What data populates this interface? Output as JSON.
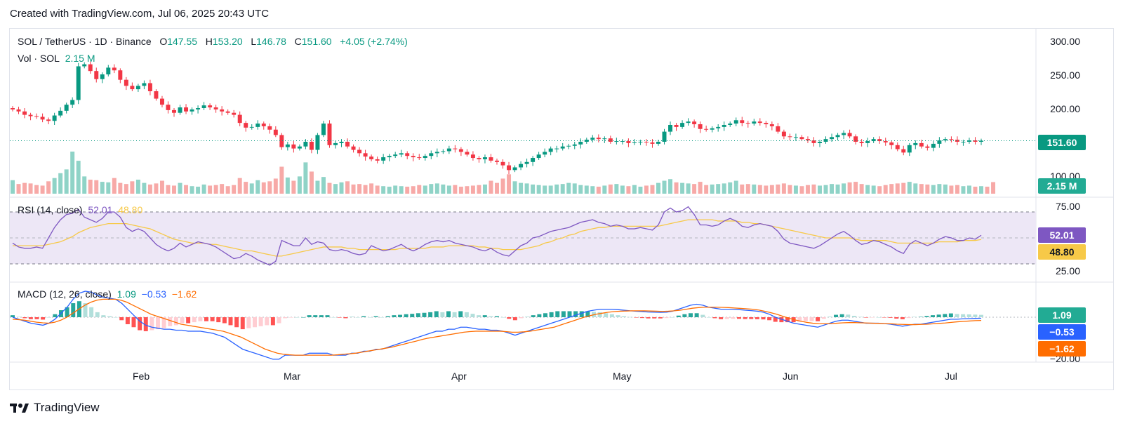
{
  "header": {
    "created": "Created with TradingView.com, Jul 06, 2025 20:43 UTC"
  },
  "price_legend": {
    "symbol": "SOL / TetherUS · 1D · Binance",
    "o_label": "O",
    "o": "147.55",
    "h_label": "H",
    "h": "153.20",
    "l_label": "L",
    "l": "146.78",
    "c_label": "C",
    "c": "151.60",
    "change": "+4.05 (+2.74%)"
  },
  "vol_legend": {
    "label": "Vol · SOL",
    "value": "2.15 M"
  },
  "rsi_legend": {
    "label": "RSI (14, close)",
    "rsi": "52.01",
    "ma": "48.80"
  },
  "macd_legend": {
    "label": "MACD (12, 26, close)",
    "hist": "1.09",
    "macd": "−0.53",
    "signal": "−1.62"
  },
  "price_axis": [
    "300.00",
    "250.00",
    "200.00",
    "100.00"
  ],
  "rsi_axis": [
    "75.00",
    "25.00"
  ],
  "macd_axis": [
    "−20.00"
  ],
  "badges": {
    "price": "151.60",
    "volume": "2.15 M",
    "rsi": "52.01",
    "rsi_ma": "48.80",
    "macd_hist": "1.09",
    "macd": "−0.53",
    "signal": "−1.62"
  },
  "x_labels": [
    "Feb",
    "Mar",
    "Apr",
    "May",
    "Jun",
    "Jul"
  ],
  "footer": {
    "brand": "TradingView"
  },
  "colors": {
    "up": "#089981",
    "down": "#f23645",
    "rsi": "#7e57c2",
    "rsi_ma": "#f7c948",
    "macd": "#2962ff",
    "signal": "#ff6d00",
    "rsi_band": "#ede7f6"
  },
  "chart_data": {
    "type": "candlestick",
    "symbol": "SOL / TetherUS",
    "interval": "1D",
    "exchange": "Binance",
    "x_labels": [
      "Feb",
      "Mar",
      "Apr",
      "May",
      "Jun",
      "Jul"
    ],
    "price_ylim": [
      100,
      300
    ],
    "last_close": 151.6,
    "close_series": [
      198,
      195,
      190,
      188,
      187,
      183,
      181,
      189,
      196,
      205,
      212,
      262,
      265,
      255,
      243,
      250,
      260,
      256,
      242,
      233,
      228,
      233,
      237,
      225,
      214,
      205,
      197,
      193,
      201,
      195,
      198,
      200,
      204,
      201,
      198,
      195,
      193,
      190,
      178,
      171,
      172,
      177,
      173,
      168,
      160,
      142,
      146,
      140,
      143,
      150,
      138,
      160,
      177,
      145,
      148,
      150,
      143,
      138,
      133,
      128,
      124,
      122,
      127,
      129,
      131,
      133,
      129,
      127,
      126,
      129,
      133,
      135,
      136,
      140,
      139,
      135,
      131,
      126,
      124,
      127,
      122,
      120,
      115,
      108,
      112,
      117,
      120,
      126,
      131,
      135,
      140,
      140,
      143,
      144,
      146,
      150,
      153,
      156,
      154,
      155,
      150,
      151,
      151,
      148,
      149,
      150,
      149,
      147,
      150,
      165,
      175,
      172,
      178,
      180,
      176,
      169,
      168,
      170,
      172,
      175,
      177,
      182,
      178,
      177,
      180,
      178,
      176,
      173,
      165,
      158,
      157,
      157,
      154,
      152,
      148,
      150,
      154,
      157,
      160,
      163,
      158,
      150,
      148,
      151,
      154,
      151,
      149,
      145,
      139,
      134,
      145,
      148,
      143,
      141,
      147,
      152,
      154,
      153,
      150,
      150,
      152,
      150,
      151.6
    ],
    "volume_m": [
      2.5,
      1.8,
      2.0,
      1.9,
      1.6,
      1.5,
      2.3,
      2.9,
      3.8,
      4.5,
      7.8,
      6.1,
      3.2,
      2.6,
      2.5,
      2.2,
      2.1,
      2.9,
      2.0,
      1.8,
      2.3,
      2.6,
      2.0,
      1.7,
      1.9,
      2.4,
      1.6,
      1.5,
      2.0,
      1.6,
      1.4,
      1.3,
      1.7,
      1.5,
      1.6,
      1.8,
      1.4,
      1.6,
      2.9,
      2.2,
      1.9,
      2.5,
      2.1,
      2.3,
      2.8,
      5.0,
      3.0,
      2.4,
      3.2,
      5.8,
      4.1,
      2.4,
      3.1,
      2.0,
      1.8,
      2.1,
      2.3,
      1.7,
      1.8,
      1.6,
      1.9,
      1.5,
      1.4,
      1.3,
      1.5,
      1.4,
      1.3,
      1.4,
      1.6,
      1.5,
      1.8,
      1.9,
      1.7,
      1.5,
      1.6,
      1.3,
      1.4,
      1.5,
      1.6,
      1.7,
      2.4,
      2.0,
      2.8,
      3.6,
      2.3,
      2.0,
      1.9,
      1.7,
      1.6,
      1.5,
      1.5,
      1.7,
      1.8,
      2.0,
      1.9,
      1.6,
      1.5,
      1.4,
      1.3,
      1.5,
      1.7,
      1.8,
      1.5,
      1.4,
      1.6,
      1.3,
      1.5,
      1.6,
      2.0,
      2.4,
      2.7,
      2.1,
      2.0,
      1.9,
      1.8,
      2.2,
      1.6,
      1.7,
      1.8,
      1.9,
      2.1,
      2.4,
      1.7,
      1.8,
      1.7,
      1.6,
      1.5,
      1.6,
      1.7,
      1.9,
      1.6,
      1.5,
      1.4,
      1.6,
      1.7,
      1.5,
      1.6,
      1.8,
      1.7,
      1.9,
      2.1,
      2.2,
      1.8,
      1.6,
      1.5,
      1.4,
      1.6,
      1.8,
      1.9,
      2.0,
      2.2,
      1.9,
      1.8,
      1.7,
      1.6,
      1.8,
      1.7,
      1.5,
      1.6,
      1.4,
      1.5,
      1.3,
      1.4,
      1.3,
      2.15
    ],
    "rsi": {
      "ylim": [
        25,
        75
      ],
      "upper_band": 70,
      "lower_band": 30,
      "rsi_value": 52.01,
      "ma_value": 48.8,
      "rsi_series": [
        46,
        43,
        42,
        42,
        43,
        42,
        50,
        58,
        64,
        68,
        69,
        72,
        66,
        64,
        62,
        65,
        70,
        70,
        66,
        58,
        55,
        57,
        55,
        50,
        45,
        42,
        40,
        42,
        46,
        43,
        45,
        47,
        46,
        45,
        43,
        40,
        37,
        34,
        35,
        38,
        36,
        33,
        31,
        29,
        32,
        48,
        46,
        44,
        44,
        50,
        45,
        47,
        46,
        41,
        40,
        41,
        40,
        38,
        37,
        38,
        44,
        42,
        40,
        41,
        43,
        45,
        42,
        40,
        42,
        45,
        47,
        48,
        47,
        48,
        46,
        45,
        44,
        43,
        41,
        40,
        42,
        39,
        37,
        36,
        40,
        44,
        46,
        50,
        51,
        53,
        55,
        56,
        57,
        58,
        60,
        62,
        63,
        64,
        62,
        61,
        59,
        60,
        59,
        57,
        57,
        58,
        57,
        56,
        60,
        70,
        73,
        70,
        71,
        74,
        68,
        60,
        60,
        59,
        60,
        63,
        65,
        63,
        59,
        58,
        60,
        61,
        60,
        59,
        55,
        49,
        46,
        45,
        44,
        43,
        42,
        44,
        47,
        50,
        53,
        55,
        52,
        48,
        45,
        46,
        48,
        47,
        45,
        43,
        40,
        38,
        45,
        48,
        46,
        44,
        46,
        49,
        51,
        50,
        48,
        48,
        50,
        49,
        52.01
      ],
      "ma_series": [
        44,
        44,
        44,
        44,
        44,
        44,
        45,
        46,
        47,
        49,
        51,
        54,
        56,
        58,
        59,
        60,
        61,
        61,
        61,
        61,
        60,
        59,
        58,
        57,
        55,
        53,
        51,
        49,
        48,
        47,
        46,
        46,
        46,
        45,
        45,
        44,
        43,
        42,
        41,
        40,
        40,
        39,
        38,
        37,
        36,
        36,
        37,
        38,
        39,
        40,
        41,
        42,
        43,
        43,
        43,
        43,
        42,
        42,
        41,
        41,
        41,
        41,
        41,
        41,
        41,
        42,
        42,
        42,
        42,
        42,
        43,
        43,
        43,
        44,
        44,
        44,
        44,
        44,
        43,
        43,
        42,
        42,
        41,
        41,
        41,
        41,
        42,
        43,
        44,
        46,
        47,
        49,
        50,
        52,
        53,
        55,
        56,
        57,
        58,
        58,
        59,
        59,
        59,
        59,
        59,
        59,
        59,
        59,
        59,
        60,
        61,
        62,
        63,
        64,
        64,
        64,
        64,
        64,
        63,
        63,
        63,
        63,
        62,
        62,
        61,
        61,
        60,
        59,
        58,
        57,
        56,
        55,
        54,
        53,
        52,
        51,
        50,
        50,
        50,
        50,
        50,
        49,
        48,
        48,
        48,
        48,
        48,
        47,
        46,
        46,
        46,
        46,
        46,
        46,
        46,
        47,
        47,
        47,
        47,
        48,
        48,
        48,
        48.8
      ]
    },
    "macd": {
      "ylim": [
        -22,
        14
      ],
      "hist_value": 1.09,
      "macd_value": -0.53,
      "signal_value": -1.62,
      "macd_series": [
        0,
        -1,
        -2,
        -3,
        -3.5,
        -4,
        -3,
        -1,
        2,
        5,
        9,
        12,
        13,
        12.5,
        11,
        10,
        9.5,
        9,
        7,
        4,
        1,
        -2,
        -4,
        -5,
        -5.5,
        -6,
        -6,
        -6.5,
        -6.5,
        -7,
        -7,
        -7,
        -7.5,
        -8,
        -9,
        -10,
        -12,
        -14,
        -16,
        -17,
        -18,
        -19,
        -20,
        -21,
        -21,
        -19,
        -19,
        -19,
        -19,
        -18,
        -18,
        -18,
        -18,
        -19,
        -19,
        -19,
        -18,
        -18,
        -17,
        -17,
        -16,
        -16,
        -15,
        -14,
        -13,
        -12,
        -11,
        -10,
        -9,
        -8,
        -7,
        -7,
        -6,
        -6,
        -5,
        -5,
        -5.5,
        -6,
        -6,
        -6.5,
        -6.5,
        -7,
        -8,
        -9,
        -8,
        -7,
        -6,
        -5,
        -4,
        -3,
        -2,
        -1,
        0,
        1,
        2,
        3,
        3.5,
        4,
        4,
        4,
        3.8,
        3.5,
        3.2,
        3,
        2.8,
        2.6,
        2.5,
        2.4,
        2.5,
        3,
        4,
        5,
        6,
        6.5,
        6,
        5,
        4.5,
        4,
        4,
        4,
        3.8,
        3.5,
        3.3,
        3,
        2.5,
        1.5,
        0,
        -1,
        -2,
        -3,
        -3.5,
        -4,
        -4.5,
        -5,
        -4,
        -3,
        -2,
        -1.5,
        -1.5,
        -2,
        -2.5,
        -3,
        -3,
        -3,
        -3.2,
        -3.5,
        -4,
        -4.5,
        -4,
        -3.5,
        -3.5,
        -3,
        -2.5,
        -2,
        -1.5,
        -1,
        -1,
        -0.8,
        -0.7,
        -0.6,
        -0.53
      ],
      "signal_series": [
        -1,
        -1.2,
        -1.5,
        -2,
        -2.5,
        -2.8,
        -3,
        -2.5,
        -1.5,
        0,
        2,
        4,
        6,
        7.5,
        8.5,
        9,
        9,
        9,
        8.5,
        7.5,
        6,
        4.5,
        3,
        1.5,
        0.5,
        -0.5,
        -1.5,
        -2.5,
        -3.5,
        -4,
        -4.5,
        -5,
        -5.5,
        -6,
        -6.5,
        -7,
        -8,
        -9,
        -10,
        -11.5,
        -13,
        -14.5,
        -16,
        -17,
        -18,
        -18.5,
        -18.8,
        -19,
        -19,
        -19,
        -19,
        -19,
        -19,
        -19,
        -18.8,
        -18.5,
        -18.3,
        -18,
        -17.5,
        -17,
        -16.5,
        -16,
        -15.5,
        -15,
        -14.2,
        -13.5,
        -12.7,
        -12,
        -11.2,
        -10.5,
        -10,
        -9.5,
        -9,
        -8.5,
        -8,
        -7.5,
        -7.2,
        -7,
        -7,
        -7,
        -7,
        -7,
        -7.2,
        -7.5,
        -7.5,
        -7.3,
        -7,
        -6.5,
        -6,
        -5.5,
        -5,
        -4,
        -3,
        -2,
        -1,
        0,
        0.8,
        1.5,
        2,
        2.5,
        2.8,
        3,
        3.1,
        3.2,
        3.2,
        3.2,
        3.1,
        3,
        2.9,
        3,
        3.2,
        3.5,
        4,
        4.5,
        4.8,
        5,
        5,
        5,
        4.9,
        4.8,
        4.6,
        4.4,
        4.2,
        4,
        3.6,
        3,
        2.3,
        1.5,
        0.5,
        -0.5,
        -1.3,
        -2,
        -2.6,
        -3,
        -3.2,
        -3.3,
        -3.2,
        -3,
        -2.8,
        -2.7,
        -2.7,
        -2.8,
        -2.9,
        -3,
        -3.1,
        -3.2,
        -3.3,
        -3.5,
        -3.6,
        -3.7,
        -3.7,
        -3.6,
        -3.5,
        -3.3,
        -3.1,
        -2.9,
        -2.6,
        -2.3,
        -2.1,
        -1.9,
        -1.7,
        -1.62
      ]
    }
  }
}
